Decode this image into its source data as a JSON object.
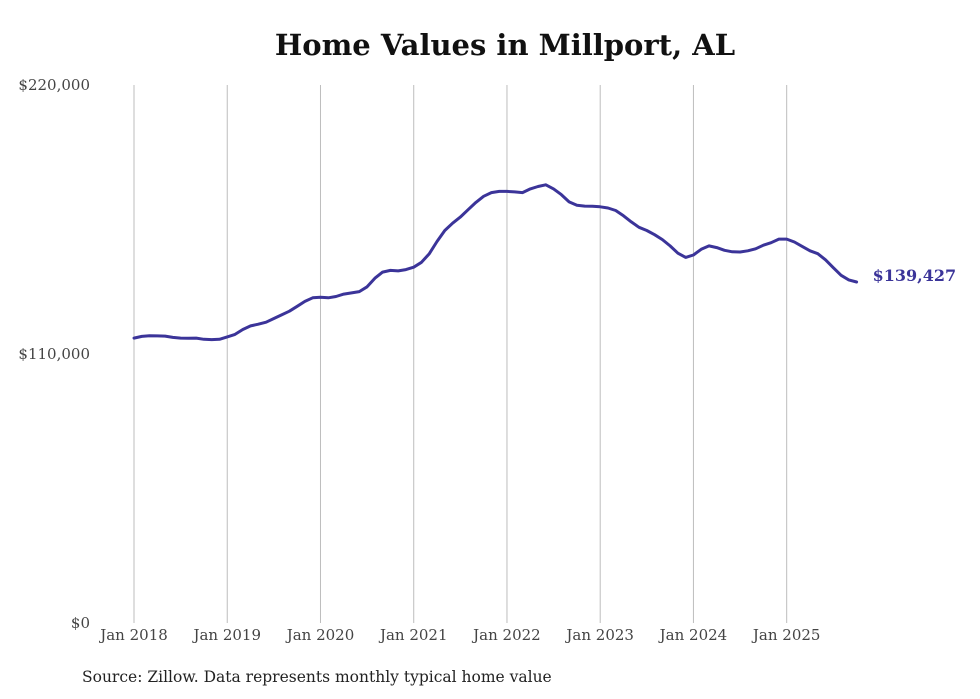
{
  "chart_data": {
    "type": "line",
    "title": "Home Values in Millport, AL",
    "source_note": "Source: Zillow. Data represents monthly typical home value",
    "xlabel": "",
    "ylabel": "",
    "ylim": [
      0,
      220000
    ],
    "y_ticks": [
      0,
      110000,
      220000
    ],
    "y_tick_labels": [
      "$0",
      "$110,000",
      "$220,000"
    ],
    "x_start": "2018-01",
    "x_tick_labels": [
      "Jan 2018",
      "Jan 2019",
      "Jan 2020",
      "Jan 2021",
      "Jan 2022",
      "Jan 2023",
      "Jan 2024",
      "Jan 2025"
    ],
    "x_tick_month_index": [
      0,
      12,
      24,
      36,
      48,
      60,
      72,
      84
    ],
    "grid": "vertical",
    "line_color": "#3b3499",
    "end_label": "$139,427",
    "series": [
      {
        "name": "Typical home value",
        "values": [
          116500,
          117200,
          117500,
          117400,
          117300,
          116800,
          116500,
          116400,
          116500,
          116000,
          115900,
          116000,
          117000,
          118000,
          120000,
          121500,
          122200,
          123000,
          124500,
          126000,
          127500,
          129500,
          131500,
          133000,
          133200,
          133000,
          133500,
          134500,
          135000,
          135500,
          137500,
          141000,
          143500,
          144200,
          144000,
          144500,
          145500,
          147500,
          151000,
          156000,
          160500,
          163500,
          166000,
          169000,
          172000,
          174500,
          176000,
          176500,
          176500,
          176300,
          176000,
          177500,
          178500,
          179200,
          177500,
          175200,
          172200,
          170800,
          170500,
          170400,
          170200,
          169700,
          168700,
          166500,
          164000,
          161800,
          160500,
          158800,
          156800,
          154200,
          151200,
          149500,
          150500,
          152800,
          154200,
          153500,
          152400,
          151800,
          151700,
          152200,
          153000,
          154500,
          155500,
          157000,
          157000,
          155800,
          154000,
          152200,
          151000,
          148500,
          145300,
          142200,
          140300,
          139427
        ]
      }
    ]
  }
}
